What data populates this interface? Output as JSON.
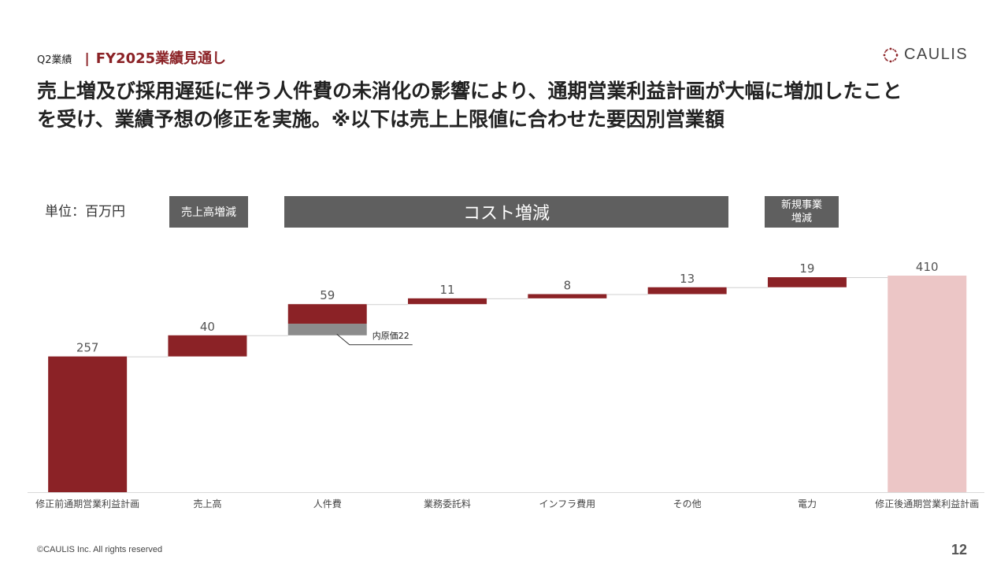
{
  "header": {
    "section": "Q2業績",
    "separator": "|",
    "title": "FY2025業績見通し",
    "logo_text": "CAULIS"
  },
  "headline": {
    "line1": "売上増及び採用遅延に伴う人件費の未消化の影響により、通期営業利益計画が大幅に増加したこと",
    "line2": "を受け、業績予想の修正を実施。※以下は売上上限値に合わせた要因別営業額"
  },
  "unit_label": "単位：百万円",
  "group_labels": {
    "sales": "売上高増減",
    "cost": "コスト増減",
    "new_business_line1": "新規事業",
    "new_business_line2": "増減"
  },
  "chart_data": {
    "type": "bar",
    "subtype": "waterfall",
    "categories": [
      "修正前通期営業利益計画",
      "売上高",
      "人件費",
      "業務委託料",
      "インフラ費用",
      "その他",
      "電力",
      "修正後通期営業利益計画"
    ],
    "values": [
      257,
      40,
      59,
      11,
      8,
      13,
      19,
      410
    ],
    "kinds": [
      "total",
      "delta",
      "delta",
      "delta",
      "delta",
      "delta",
      "delta",
      "total"
    ],
    "value_labels": [
      "257",
      "40",
      "59",
      "11",
      "8",
      "13",
      "19",
      "410"
    ],
    "sub_segment": {
      "category": "人件費",
      "value": 22,
      "label": "内原価22"
    },
    "ylim": [
      0,
      410
    ],
    "grid": false,
    "colors": {
      "start_bar": "#8b2226",
      "delta_bar": "#8b2226",
      "sub_segment": "#8c8c8c",
      "end_bar": "#ecc6c6",
      "connector": "#d0d0d0"
    }
  },
  "footer": {
    "copyright": "©CAULIS Inc. All rights reserved",
    "page_number": "12"
  }
}
